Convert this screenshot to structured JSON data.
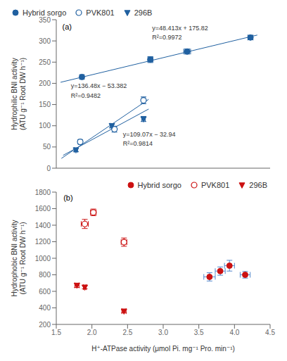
{
  "chart_data": [
    {
      "type": "scatter",
      "panel_label": {
        "text": "(a)",
        "x": 0.57,
        "y": 340
      },
      "annotations": [
        {
          "text": "y=48.413x + 175.82",
          "x": 1.62,
          "y": 322
        },
        {
          "text": "R²=0.9972",
          "x": 1.62,
          "y": 300
        },
        {
          "text": "y=136.48x − 53.382",
          "x": 0.67,
          "y": 185
        },
        {
          "text": "R²=0.9482",
          "x": 0.67,
          "y": 163
        },
        {
          "text": "y=109.07x − 32.94",
          "x": 1.28,
          "y": 72
        },
        {
          "text": "R²=0.9814",
          "x": 1.28,
          "y": 50
        }
      ],
      "xlim": [
        0.5,
        3.0
      ],
      "ylim": [
        0,
        350
      ],
      "xticks": [
        0.5,
        1.0,
        1.5,
        2.0,
        2.5,
        3.0
      ],
      "yticks": [
        0,
        50,
        100,
        150,
        200,
        250,
        300,
        350
      ],
      "ylabel": "Hydrophilic BNI activity\n(ATU g⁻¹ Root DW h⁻¹)",
      "tick_labels": "y",
      "legend": "upper left",
      "series": [
        {
          "name": "Hybrid sorgo",
          "color": "#2060a0",
          "marker": "circle",
          "x": [
            0.8,
            1.6,
            2.03,
            2.77
          ],
          "values": [
            215,
            256,
            275,
            308
          ],
          "xerr": [
            0.02,
            0.03,
            0.04,
            0.03
          ],
          "yerr": [
            5,
            7,
            6,
            5
          ],
          "fit": {
            "x": [
              0.55,
              2.85
            ],
            "y": [
              202.44715,
              313.79705
            ]
          }
        },
        {
          "name": "PVK801",
          "color": "#2060a0",
          "marker": "circle_open",
          "x": [
            0.78,
            1.18,
            1.52
          ],
          "values": [
            62,
            92,
            160
          ],
          "xerr": [
            0.02,
            0.02,
            0.02
          ],
          "yerr": [
            5,
            7,
            8
          ],
          "fit": {
            "x": [
              0.56,
              1.58
            ],
            "y": [
              23.0468,
              162.2564
            ]
          }
        },
        {
          "name": "296B",
          "color": "#2060a0",
          "marker": "triangle_down",
          "x": [
            0.73,
            1.15,
            1.52
          ],
          "values": [
            43,
            100,
            116
          ],
          "xerr": [
            0.02,
            0.02,
            0.02
          ],
          "yerr": [
            4,
            5,
            6
          ],
          "fit": {
            "x": [
              0.58,
              1.58
            ],
            "y": [
              30.3206,
              139.3906
            ]
          }
        }
      ]
    },
    {
      "type": "scatter",
      "panel_label": {
        "text": "(b)",
        "x": 1.6,
        "y": 1770
      },
      "annotations": [],
      "xlim": [
        1.5,
        4.5
      ],
      "ylim": [
        200,
        1800
      ],
      "xticks": [
        1.5,
        {
          "value": 2.0,
          "label": "2.0"
        },
        2.5,
        {
          "value": 3.0,
          "label": "3.0"
        },
        3.5,
        {
          "value": 4.0,
          "label": "4.0"
        },
        4.5
      ],
      "yticks": [
        200,
        400,
        600,
        800,
        1000,
        1200,
        1400,
        1600,
        1800
      ],
      "ylabel": "Hydrophobic BNI activity\n(ATU g⁻¹ Root DW h⁻¹)",
      "xlabel": "H⁺-ATPase activity (μmol Pi. mg⁻¹ Pro. min⁻¹)",
      "legend": "upper right",
      "series": [
        {
          "name": "Hybrid sorgo",
          "color": "#cc1111",
          "error_color": "#5588cc",
          "marker": "circle",
          "x": [
            3.65,
            3.8,
            3.93,
            4.15
          ],
          "values": [
            775,
            845,
            910,
            800
          ],
          "xerr": [
            0.08,
            0.07,
            0.07,
            0.07
          ],
          "yerr": [
            50,
            50,
            65,
            40
          ]
        },
        {
          "name": "PVK801",
          "color": "#cc1111",
          "marker": "circle_open",
          "x": [
            1.9,
            2.02,
            2.45
          ],
          "values": [
            1415,
            1555,
            1195
          ],
          "xerr": [
            0.05,
            0.04,
            0.04
          ],
          "yerr": [
            55,
            40,
            50
          ]
        },
        {
          "name": "296B",
          "color": "#cc1111",
          "marker": "triangle_down",
          "x": [
            1.79,
            1.9,
            2.45
          ],
          "values": [
            672,
            650,
            360
          ],
          "xerr": [
            0.03,
            0.02,
            0.03
          ],
          "yerr": [
            25,
            20,
            20
          ]
        }
      ]
    }
  ]
}
